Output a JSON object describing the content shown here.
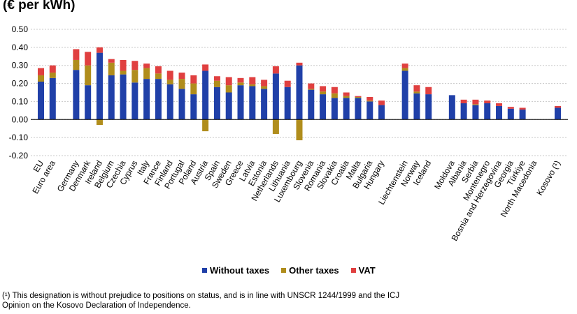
{
  "chart_data": {
    "type": "bar",
    "stacked": true,
    "unit_label": "(€ per kWh)",
    "ylim": [
      -0.2,
      0.5
    ],
    "yticks": [
      "0.50",
      "0.40",
      "0.30",
      "0.20",
      "0.10",
      "0.00",
      "-0.10",
      "-0.20"
    ],
    "grid": true,
    "legend_position": "bottom",
    "categories": [
      "EU",
      "Euro area",
      "Germany",
      "Denmark",
      "Ireland",
      "Belgium",
      "Czechia",
      "Cyprus",
      "Italy",
      "France",
      "Finland",
      "Portugal",
      "Poland",
      "Austria",
      "Spain",
      "Sweden",
      "Greece",
      "Latvia",
      "Estonia",
      "Netherlands",
      "Lithuania",
      "Luxembourg",
      "Slovenia",
      "Romania",
      "Slovakia",
      "Croatia",
      "Malta",
      "Bulgaria",
      "Hungary",
      "Liechtenstein",
      "Norway",
      "Iceland",
      "Moldova",
      "Albania",
      "Serbia",
      "Montenegro",
      "Bosnia and Herzegovina",
      "Georgia",
      "Türkiye",
      "North Macedonia",
      "Kosovo (¹)"
    ],
    "gap_after": [
      1,
      28,
      31,
      39
    ],
    "series": [
      {
        "name": "Without taxes",
        "color": "#2040a8",
        "values": [
          0.21,
          0.23,
          0.275,
          0.19,
          0.37,
          0.245,
          0.25,
          0.205,
          0.225,
          0.225,
          0.195,
          0.17,
          0.14,
          0.27,
          0.18,
          0.15,
          0.19,
          0.185,
          0.17,
          0.255,
          0.18,
          0.3,
          0.165,
          0.14,
          0.12,
          0.12,
          0.12,
          0.1,
          0.08,
          0.27,
          0.145,
          0.14,
          0.135,
          0.09,
          0.08,
          0.09,
          0.075,
          0.06,
          0.055,
          null,
          0.065
        ]
      },
      {
        "name": "Other taxes",
        "color": "#b08d1c",
        "values": [
          0.035,
          0.03,
          0.055,
          0.11,
          -0.03,
          0.07,
          0.02,
          0.07,
          0.06,
          0.03,
          0.025,
          0.055,
          0.06,
          -0.065,
          0.035,
          0.04,
          0.015,
          0.01,
          0.015,
          -0.08,
          0.0,
          -0.115,
          0.005,
          0.015,
          0.025,
          0.01,
          0.005,
          0.005,
          0.0,
          0.015,
          0.01,
          0.0,
          0.0,
          0.0,
          0.005,
          0.0,
          0.0,
          0.0,
          0.0,
          null,
          0.0
        ]
      },
      {
        "name": "VAT",
        "color": "#e04040",
        "values": [
          0.04,
          0.04,
          0.06,
          0.075,
          0.03,
          0.02,
          0.06,
          0.05,
          0.025,
          0.04,
          0.05,
          0.035,
          0.045,
          0.035,
          0.025,
          0.045,
          0.025,
          0.04,
          0.035,
          0.04,
          0.035,
          0.015,
          0.03,
          0.03,
          0.035,
          0.02,
          0.005,
          0.02,
          0.025,
          0.025,
          0.035,
          0.04,
          0.0,
          0.02,
          0.025,
          0.015,
          0.015,
          0.01,
          0.01,
          null,
          0.01
        ]
      }
    ]
  },
  "footnote": {
    "line1": "(¹) This designation is without  prejudice to positions on status, and is in line with UNSCR 1244/1999 and the ICJ",
    "line2": "Opinion on the Kosovo Declaration of Independence."
  }
}
